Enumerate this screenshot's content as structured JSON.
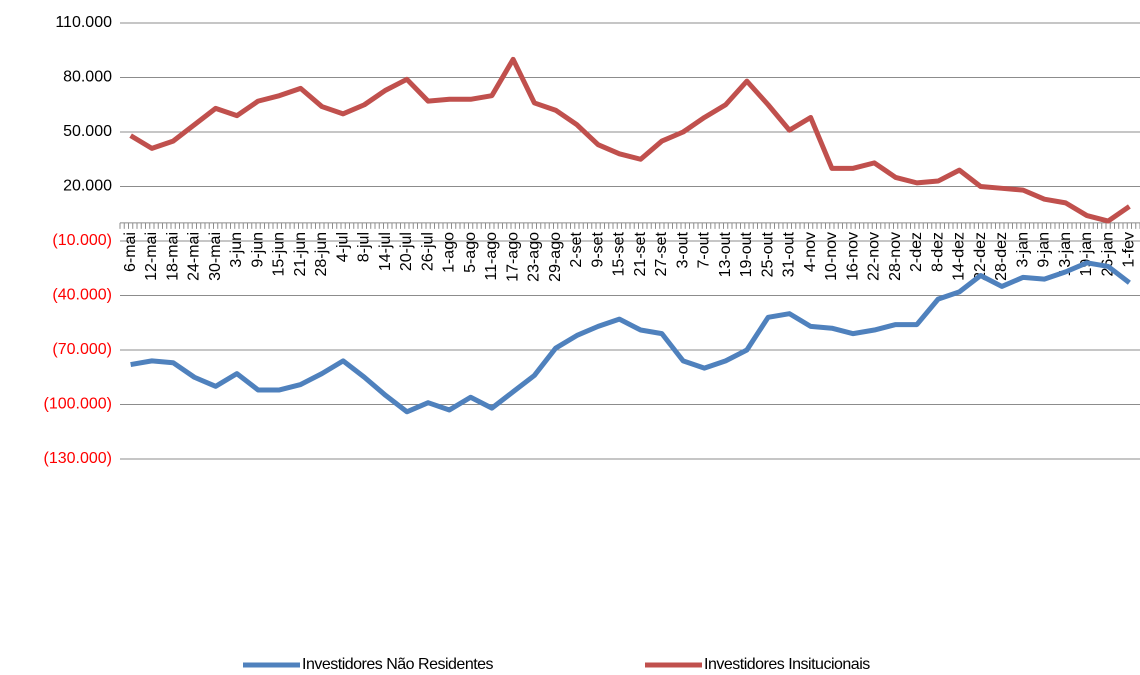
{
  "chart_data": {
    "type": "line",
    "categories": [
      "6-mai",
      "12-mai",
      "18-mai",
      "24-mai",
      "30-mai",
      "3-jun",
      "9-jun",
      "15-jun",
      "21-jun",
      "28-jun",
      "4-jul",
      "8-jul",
      "14-jul",
      "20-jul",
      "26-jul",
      "1-ago",
      "5-ago",
      "11-ago",
      "17-ago",
      "23-ago",
      "29-ago",
      "2-set",
      "9-set",
      "15-set",
      "21-set",
      "27-set",
      "3-out",
      "7-out",
      "13-out",
      "19-out",
      "25-out",
      "31-out",
      "4-nov",
      "10-nov",
      "16-nov",
      "22-nov",
      "28-nov",
      "2-dez",
      "8-dez",
      "14-dez",
      "22-dez",
      "28-dez",
      "3-jan",
      "9-jan",
      "13-jan",
      "19-jan",
      "26-jan",
      "1-fev"
    ],
    "series": [
      {
        "name": "Investidores Não Residentes",
        "color": "#4f81bd",
        "values": [
          -78000,
          -76000,
          -77000,
          -85000,
          -90000,
          -83000,
          -92000,
          -92000,
          -89000,
          -83000,
          -76000,
          -85000,
          -95000,
          -104000,
          -99000,
          -103000,
          -96000,
          -102000,
          -93000,
          -84000,
          -69000,
          -62000,
          -57000,
          -53000,
          -59000,
          -61000,
          -76000,
          -80000,
          -76000,
          -70000,
          -52000,
          -50000,
          -57000,
          -58000,
          -61000,
          -59000,
          -56000,
          -56000,
          -42000,
          -38000,
          -29000,
          -35000,
          -30000,
          -31000,
          -27000,
          -22000,
          -24000,
          -33000
        ]
      },
      {
        "name": "Investidores Insitucionais",
        "color": "#c0504d",
        "values": [
          48000,
          41000,
          45000,
          54000,
          63000,
          59000,
          67000,
          70000,
          74000,
          64000,
          60000,
          65000,
          73000,
          79000,
          67000,
          68000,
          68000,
          70000,
          90000,
          66000,
          62000,
          54000,
          43000,
          38000,
          35000,
          45000,
          50000,
          58000,
          65000,
          78000,
          65000,
          51000,
          58000,
          30000,
          30000,
          33000,
          25000,
          22000,
          23000,
          29000,
          20000,
          19000,
          18000,
          13000,
          11000,
          4000,
          1000,
          9000
        ]
      }
    ],
    "ylim": [
      -130000,
      110000
    ],
    "yticks": [
      {
        "value": 110000,
        "label": "110.000"
      },
      {
        "value": 80000,
        "label": "80.000"
      },
      {
        "value": 50000,
        "label": "50.000"
      },
      {
        "value": 20000,
        "label": "20.000"
      },
      {
        "value": -10000,
        "label": "(10.000)"
      },
      {
        "value": -40000,
        "label": "(40.000)"
      },
      {
        "value": -70000,
        "label": "(70.000)"
      },
      {
        "value": -100000,
        "label": "(100.000)"
      },
      {
        "value": -130000,
        "label": "(130.000)"
      }
    ],
    "grid": true,
    "negative_label_color": "#ff0000",
    "legend": "bottom"
  }
}
